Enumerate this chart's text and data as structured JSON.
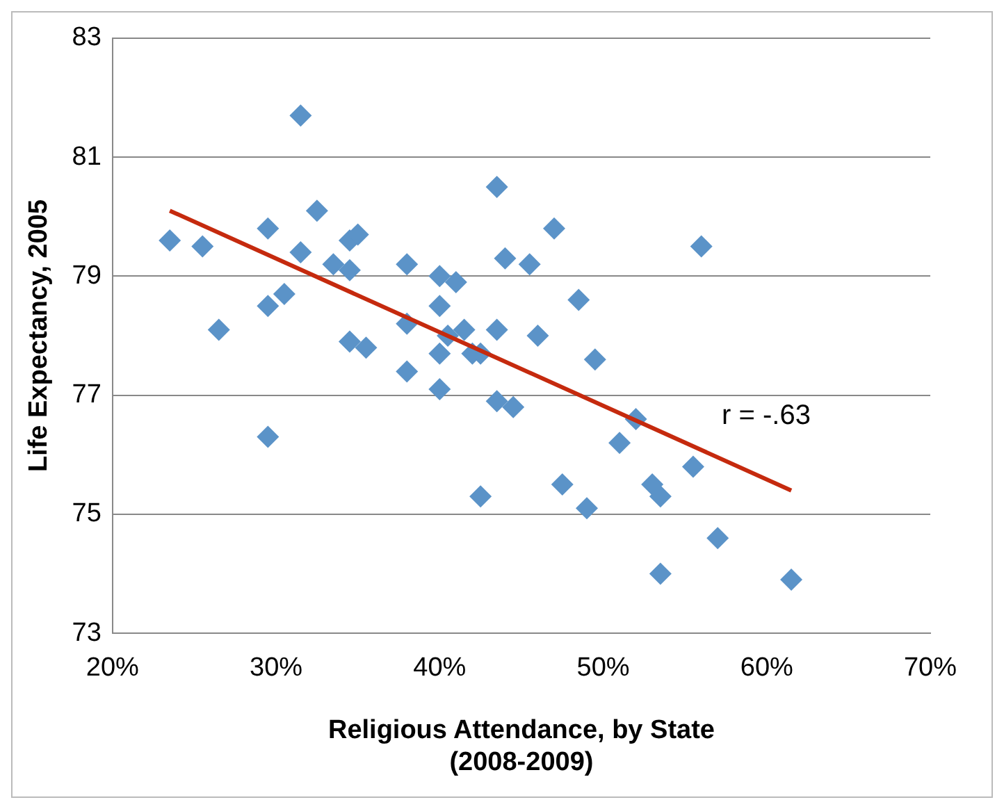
{
  "chart_data": {
    "type": "scatter",
    "xlabel": "Religious Attendance, by State\n(2008-2009)",
    "ylabel": "Life Expectancy, 2005",
    "marker": "diamond",
    "grid": "y",
    "xlim": [
      20,
      70
    ],
    "ylim": [
      73,
      83
    ],
    "xticks": [
      {
        "value": 20,
        "label": "20%"
      },
      {
        "value": 30,
        "label": "30%"
      },
      {
        "value": 40,
        "label": "40%"
      },
      {
        "value": 50,
        "label": "50%"
      },
      {
        "value": 60,
        "label": "60%"
      },
      {
        "value": 70,
        "label": "70%"
      }
    ],
    "yticks": [
      73,
      75,
      77,
      79,
      81,
      83
    ],
    "annotations": [
      "r = -.63"
    ],
    "series": [
      {
        "color": "#5b93c8",
        "x": [
          23.5,
          25.5,
          26.5,
          29.5,
          29.5,
          29.5,
          30.5,
          31.5,
          31.5,
          32.5,
          33.5,
          34.5,
          34.5,
          35,
          34.5,
          35.5,
          38,
          38,
          38,
          40,
          40,
          40,
          40,
          40.5,
          41,
          41.5,
          42,
          42.5,
          42.5,
          43.5,
          43.5,
          43.5,
          44,
          44.5,
          45.5,
          46,
          47,
          47.5,
          48.5,
          49,
          49.5,
          51,
          52,
          53,
          53.5,
          53.5,
          55.5,
          56,
          57,
          61.5
        ],
        "values": [
          79.6,
          79.5,
          78.1,
          79.8,
          78.5,
          76.3,
          78.7,
          81.7,
          79.4,
          80.1,
          79.2,
          79.6,
          79.1,
          79.7,
          77.9,
          77.8,
          79.2,
          78.2,
          77.4,
          79.0,
          78.5,
          77.7,
          77.1,
          78.0,
          78.9,
          78.1,
          77.7,
          77.7,
          75.3,
          80.5,
          78.1,
          76.9,
          79.3,
          76.8,
          79.2,
          78.0,
          79.8,
          75.5,
          78.6,
          75.1,
          77.6,
          76.2,
          76.6,
          75.5,
          75.3,
          74.0,
          75.8,
          79.5,
          74.6,
          73.9
        ]
      },
      {
        "type": "line",
        "color": "#c52a0e",
        "marker": "none",
        "x": [
          23.5,
          61.5
        ],
        "values": [
          80.1,
          75.4
        ]
      }
    ]
  }
}
